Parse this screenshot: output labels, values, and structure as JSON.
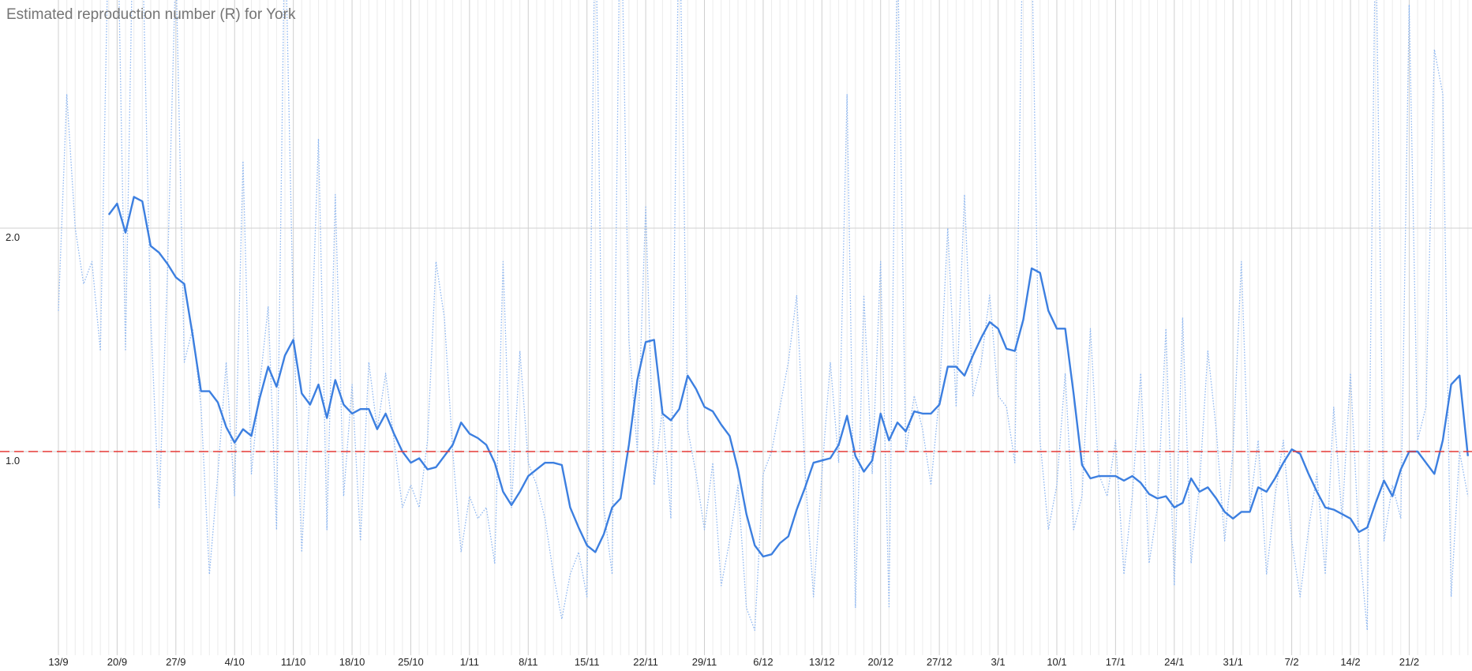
{
  "chart_data": {
    "type": "line",
    "title": "Estimated reproduction number (R) for York",
    "categories": [
      "13/9",
      null,
      null,
      null,
      null,
      null,
      null,
      "20/9",
      null,
      null,
      null,
      null,
      null,
      null,
      "27/9",
      null,
      null,
      null,
      null,
      null,
      null,
      "4/10",
      null,
      null,
      null,
      null,
      null,
      null,
      "11/10",
      null,
      null,
      null,
      null,
      null,
      null,
      "18/10",
      null,
      null,
      null,
      null,
      null,
      null,
      "25/10",
      null,
      null,
      null,
      null,
      null,
      null,
      "1/11",
      null,
      null,
      null,
      null,
      null,
      null,
      "8/11",
      null,
      null,
      null,
      null,
      null,
      null,
      "15/11",
      null,
      null,
      null,
      null,
      null,
      null,
      "22/11",
      null,
      null,
      null,
      null,
      null,
      null,
      "29/11",
      null,
      null,
      null,
      null,
      null,
      null,
      "6/12",
      null,
      null,
      null,
      null,
      null,
      null,
      "13/12",
      null,
      null,
      null,
      null,
      null,
      null,
      "20/12",
      null,
      null,
      null,
      null,
      null,
      null,
      "27/12",
      null,
      null,
      null,
      null,
      null,
      null,
      "3/1",
      null,
      null,
      null,
      null,
      null,
      null,
      "10/1",
      null,
      null,
      null,
      null,
      null,
      null,
      "17/1",
      null,
      null,
      null,
      null,
      null,
      null,
      "24/1",
      null,
      null,
      null,
      null,
      null,
      null,
      "31/1",
      null,
      null,
      null,
      null,
      null,
      null,
      "7/2",
      null,
      null,
      null,
      null,
      null,
      null,
      "14/2",
      null,
      null,
      null,
      null,
      null,
      null,
      "21/2",
      null,
      null,
      null,
      null,
      null,
      null,
      null
    ],
    "series": [
      {
        "color": "#8ab4f0",
        "style": "dotted",
        "values": [
          1.63,
          2.6,
          2.0,
          1.75,
          1.85,
          1.45,
          3.4,
          3.5,
          1.45,
          3.6,
          3.3,
          1.6,
          0.75,
          1.8,
          3.2,
          1.4,
          1.55,
          1.2,
          0.45,
          0.9,
          1.4,
          0.8,
          2.3,
          0.9,
          1.3,
          1.65,
          0.65,
          3.4,
          1.6,
          0.55,
          1.3,
          2.4,
          0.65,
          2.15,
          0.8,
          1.3,
          0.6,
          1.4,
          1.1,
          1.35,
          1.05,
          0.75,
          0.85,
          0.75,
          1.05,
          1.85,
          1.6,
          1.0,
          0.55,
          0.8,
          0.7,
          0.75,
          0.5,
          1.85,
          0.75,
          1.45,
          0.95,
          0.85,
          0.7,
          0.45,
          0.25,
          0.45,
          0.55,
          0.35,
          3.5,
          0.75,
          0.45,
          3.6,
          1.5,
          1.0,
          2.1,
          0.85,
          1.2,
          0.7,
          3.5,
          1.1,
          0.9,
          0.65,
          0.95,
          0.4,
          0.6,
          0.85,
          0.3,
          0.2,
          0.9,
          1.0,
          1.2,
          1.4,
          1.7,
          0.9,
          0.35,
          0.9,
          1.4,
          0.95,
          2.6,
          0.3,
          1.7,
          0.9,
          1.85,
          0.3,
          3.3,
          1.0,
          1.25,
          1.1,
          0.85,
          1.25,
          2.0,
          1.2,
          2.15,
          1.25,
          1.4,
          1.7,
          1.25,
          1.2,
          0.95,
          3.5,
          3.3,
          1.05,
          0.65,
          0.85,
          1.35,
          0.65,
          0.8,
          1.55,
          0.9,
          0.8,
          1.05,
          0.45,
          0.8,
          1.35,
          0.5,
          0.75,
          1.55,
          0.4,
          1.6,
          0.5,
          0.85,
          1.45,
          1.1,
          0.6,
          1.0,
          1.85,
          0.75,
          1.05,
          0.45,
          0.8,
          1.05,
          0.6,
          0.35,
          0.65,
          0.9,
          0.45,
          1.2,
          0.7,
          1.35,
          0.6,
          0.2,
          3.4,
          0.6,
          0.85,
          0.7,
          3.0,
          1.05,
          1.2,
          2.8,
          2.6,
          0.35,
          1.0,
          0.8
        ]
      },
      {
        "color": "#3c7fe0",
        "style": "solid",
        "values": [
          null,
          null,
          null,
          null,
          null,
          null,
          2.06,
          2.11,
          1.98,
          2.14,
          2.12,
          1.92,
          1.89,
          1.84,
          1.78,
          1.75,
          1.52,
          1.27,
          1.27,
          1.22,
          1.11,
          1.04,
          1.1,
          1.07,
          1.24,
          1.38,
          1.29,
          1.43,
          1.5,
          1.26,
          1.21,
          1.3,
          1.15,
          1.32,
          1.21,
          1.17,
          1.19,
          1.19,
          1.1,
          1.17,
          1.08,
          1.0,
          0.95,
          0.97,
          0.92,
          0.93,
          0.98,
          1.03,
          1.13,
          1.08,
          1.06,
          1.03,
          0.95,
          0.82,
          0.76,
          0.82,
          0.89,
          0.92,
          0.95,
          0.95,
          0.94,
          0.75,
          0.66,
          0.58,
          0.55,
          0.63,
          0.75,
          0.79,
          1.03,
          1.32,
          1.49,
          1.5,
          1.17,
          1.14,
          1.19,
          1.34,
          1.28,
          1.2,
          1.18,
          1.12,
          1.07,
          0.92,
          0.72,
          0.58,
          0.53,
          0.54,
          0.59,
          0.62,
          0.74,
          0.84,
          0.95,
          0.96,
          0.97,
          1.03,
          1.16,
          0.98,
          0.91,
          0.96,
          1.17,
          1.05,
          1.13,
          1.09,
          1.18,
          1.17,
          1.17,
          1.21,
          1.38,
          1.38,
          1.34,
          1.43,
          1.51,
          1.58,
          1.55,
          1.46,
          1.45,
          1.59,
          1.82,
          1.8,
          1.63,
          1.55,
          1.55,
          1.26,
          0.94,
          0.88,
          0.89,
          0.89,
          0.89,
          0.87,
          0.89,
          0.86,
          0.81,
          0.79,
          0.8,
          0.75,
          0.77,
          0.88,
          0.82,
          0.84,
          0.79,
          0.73,
          0.7,
          0.73,
          0.73,
          0.84,
          0.82,
          0.88,
          0.95,
          1.01,
          0.99,
          0.9,
          0.82,
          0.75,
          0.74,
          0.72,
          0.7,
          0.64,
          0.66,
          0.77,
          0.87,
          0.8,
          0.92,
          1.0,
          1.0,
          0.95,
          0.9,
          1.05,
          1.3,
          1.34,
          0.98
        ]
      }
    ],
    "reference_line": {
      "value": 1,
      "color": "#e53935"
    },
    "ylim": [
      0,
      3
    ],
    "yticks": [
      {
        "value": 1,
        "label": "1.0"
      },
      {
        "value": 2,
        "label": "2.0"
      }
    ],
    "grid": true
  }
}
